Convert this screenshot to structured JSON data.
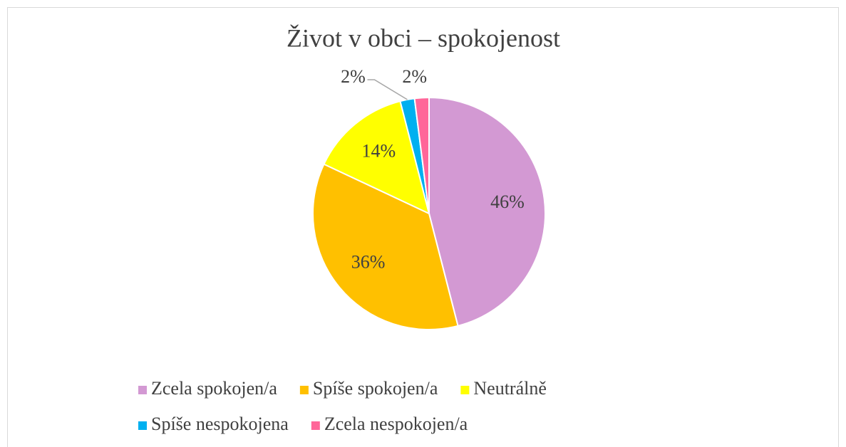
{
  "chart_data": {
    "type": "pie",
    "title": "Život v obci – spokojenost",
    "categories": [
      "Zcela spokojen/a",
      "Spíše spokojen/a",
      "Neutrálně",
      "Spíše nespokojena",
      "Zcela nespokojen/a"
    ],
    "values": [
      46,
      36,
      14,
      2,
      2
    ],
    "value_labels": [
      "46%",
      "36%",
      "14%",
      "2%",
      "2%"
    ],
    "colors": [
      "#d399d3",
      "#ffc000",
      "#ffff00",
      "#00b0f0",
      "#ff6699"
    ],
    "legend": "bottom"
  }
}
